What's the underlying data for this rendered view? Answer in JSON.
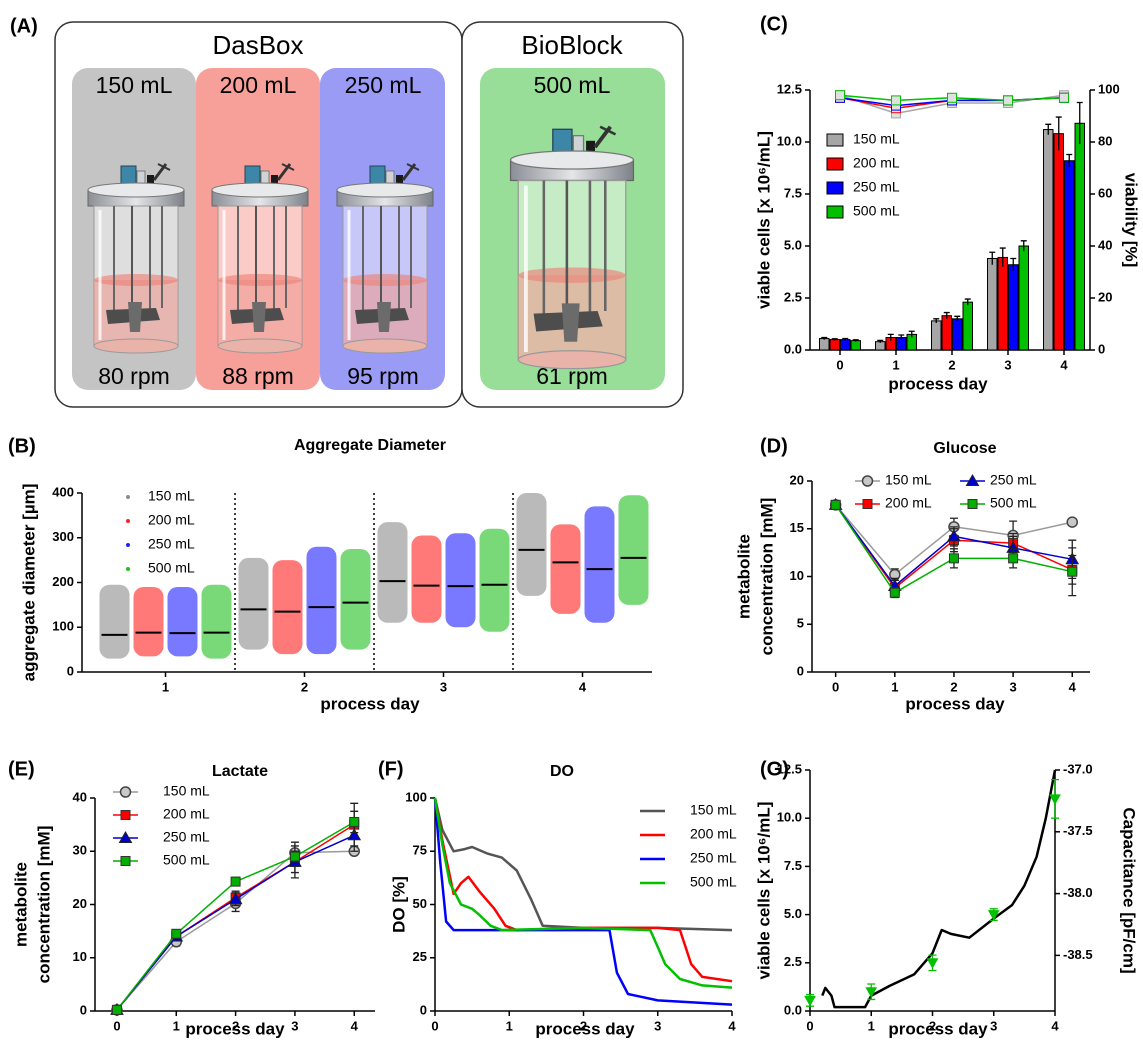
{
  "diagram": {
    "label": "(A)",
    "groups": [
      {
        "title": "DasBox",
        "vessels": [
          {
            "volume": "150 mL",
            "speed": "80 rpm"
          },
          {
            "volume": "200 mL",
            "speed": "88 rpm"
          },
          {
            "volume": "250 mL",
            "speed": "95 rpm"
          }
        ]
      },
      {
        "title": "BioBlock",
        "vessels": [
          {
            "volume": "500 mL",
            "speed": "61 rpm"
          }
        ]
      }
    ]
  },
  "chart_data": [
    {
      "type": "strip",
      "label": "(B)",
      "title": "Aggregate Diameter",
      "xlabel": "process day",
      "ylabel": [
        "aggregate diameter [µm]"
      ],
      "categories": [
        "1",
        "2",
        "3",
        "4"
      ],
      "ylim": [
        0,
        400
      ],
      "yticks": [
        0,
        100,
        200,
        300,
        400
      ],
      "series": [
        {
          "name": "150 mL",
          "color": "#8c8c8c",
          "values": [
            83,
            140,
            203,
            273
          ],
          "low": [
            30,
            50,
            110,
            170
          ],
          "high": [
            195,
            255,
            335,
            400
          ]
        },
        {
          "name": "200 mL",
          "color": "#ff2020",
          "values": [
            88,
            135,
            193,
            245
          ],
          "low": [
            35,
            40,
            110,
            130
          ],
          "high": [
            190,
            250,
            305,
            330
          ]
        },
        {
          "name": "250 mL",
          "color": "#2020ff",
          "values": [
            87,
            145,
            192,
            230
          ],
          "low": [
            35,
            40,
            100,
            110
          ],
          "high": [
            190,
            280,
            310,
            370
          ]
        },
        {
          "name": "500 mL",
          "color": "#20c020",
          "values": [
            88,
            155,
            195,
            255
          ],
          "low": [
            30,
            50,
            90,
            150
          ],
          "high": [
            195,
            275,
            320,
            395
          ]
        }
      ]
    },
    {
      "type": "bar",
      "label": "(C)",
      "xlabel": "process day",
      "ylabel": [
        "viable cells [x 10⁶/mL]"
      ],
      "y2label": "viability [%]",
      "categories": [
        "0",
        "1",
        "2",
        "3",
        "4"
      ],
      "ylim": [
        0,
        12.5
      ],
      "yticks": [
        {
          "value": 0,
          "label": "0.0"
        },
        2.5,
        {
          "value": 5,
          "label": "5.0"
        },
        7.5,
        {
          "value": 10,
          "label": "10.0"
        },
        12.5
      ],
      "y2lim": [
        0,
        100
      ],
      "y2ticks": [
        0,
        20,
        40,
        60,
        80,
        100
      ],
      "series": [
        {
          "name": "150 mL",
          "type": "bar",
          "color": "#a6a6a6",
          "values": [
            0.55,
            0.4,
            1.4,
            4.4,
            10.6
          ],
          "errors": [
            0.05,
            0.06,
            0.1,
            0.3,
            0.25
          ]
        },
        {
          "name": "200 mL",
          "type": "bar",
          "color": "#ff0000",
          "values": [
            0.5,
            0.6,
            1.65,
            4.45,
            10.4
          ],
          "errors": [
            0.04,
            0.15,
            0.15,
            0.45,
            0.8
          ]
        },
        {
          "name": "250 mL",
          "type": "bar",
          "color": "#0000ff",
          "values": [
            0.5,
            0.6,
            1.5,
            4.1,
            9.1
          ],
          "errors": [
            0.05,
            0.12,
            0.12,
            0.3,
            0.3
          ]
        },
        {
          "name": "500 mL",
          "type": "bar",
          "color": "#00c000",
          "values": [
            0.45,
            0.75,
            2.3,
            5.0,
            10.9
          ],
          "errors": [
            0.04,
            0.15,
            0.15,
            0.25,
            1.0
          ]
        },
        {
          "type": "line",
          "axis": "y2",
          "marker": "square",
          "color": "#a6a6a6",
          "values": [
            98,
            91,
            95,
            95,
            98
          ]
        },
        {
          "type": "line",
          "axis": "y2",
          "marker": "square",
          "color": "#ff0000",
          "values": [
            97,
            93,
            96,
            96,
            97
          ]
        },
        {
          "type": "line",
          "axis": "y2",
          "marker": "square",
          "color": "#0000ff",
          "values": [
            97,
            94,
            96,
            96,
            97
          ]
        },
        {
          "type": "line",
          "axis": "y2",
          "marker": "square",
          "color": "#00c000",
          "values": [
            98,
            96,
            97,
            96,
            97
          ]
        }
      ]
    },
    {
      "type": "line",
      "label": "(D)",
      "title": "Glucose",
      "xlabel": "process day",
      "ylabel": [
        "metabolite",
        "concentration [mM]"
      ],
      "x": [
        0,
        1,
        2,
        3,
        4
      ],
      "xlim": [
        -0.4,
        4.3
      ],
      "xticks": [
        0,
        1,
        2,
        3,
        4
      ],
      "ylim": [
        0,
        20
      ],
      "yticks": [
        0,
        5,
        10,
        15,
        20
      ],
      "series": [
        {
          "name": "150 mL",
          "marker": "circle",
          "color": "#9a9a9a",
          "values": [
            17.5,
            10.2,
            15.2,
            14.3,
            15.7
          ],
          "errors": [
            0.3,
            0.6,
            0.9,
            1.5,
            0.3
          ]
        },
        {
          "name": "200 mL",
          "marker": "square",
          "color": "#ff0000",
          "values": [
            17.5,
            8.8,
            13.8,
            13.5,
            10.7
          ],
          "errors": [
            0.3,
            0.8,
            1.2,
            1.0,
            1.5
          ]
        },
        {
          "name": "250 mL",
          "marker": "triangle",
          "color": "#0000cc",
          "values": [
            17.5,
            9.0,
            14.2,
            13.0,
            11.8
          ],
          "errors": [
            0.3,
            0.8,
            1.0,
            1.2,
            2.0
          ]
        },
        {
          "name": "500 mL",
          "marker": "square",
          "color": "#00b000",
          "values": [
            17.5,
            8.3,
            11.9,
            11.9,
            10.5
          ],
          "errors": [
            0.3,
            0.5,
            1.0,
            1.0,
            2.5
          ]
        }
      ]
    },
    {
      "type": "line",
      "label": "(E)",
      "title": "Lactate",
      "xlabel": "process day",
      "ylabel": [
        "metabolite",
        "concentration [mM]"
      ],
      "x": [
        0,
        1,
        2,
        3,
        4
      ],
      "xlim": [
        -0.37,
        4.35
      ],
      "xticks": [
        0,
        1,
        2,
        3,
        4
      ],
      "ylim": [
        0,
        40
      ],
      "yticks": [
        0,
        10,
        20,
        30,
        40
      ],
      "series": [
        {
          "name": "150 mL",
          "marker": "circle",
          "color": "#9a9a9a",
          "values": [
            0.2,
            13,
            20.2,
            29.7,
            30
          ],
          "errors": [
            0.2,
            0.8,
            1.5,
            2.0,
            0.5
          ]
        },
        {
          "name": "200 mL",
          "marker": "square",
          "color": "#ff0000",
          "values": [
            0.2,
            14,
            21.3,
            28,
            35
          ],
          "errors": [
            0.2,
            0.8,
            1.2,
            3.0,
            4.0
          ]
        },
        {
          "name": "250 mL",
          "marker": "triangle",
          "color": "#0000cc",
          "values": [
            0.2,
            14,
            21,
            28,
            33
          ],
          "errors": [
            0.2,
            0.8,
            1.2,
            2.0,
            3.0
          ]
        },
        {
          "name": "500 mL",
          "marker": "square",
          "color": "#00b000",
          "values": [
            0.2,
            14.5,
            24.3,
            29,
            35.5
          ],
          "errors": [
            0.2,
            0.6,
            0.8,
            1.0,
            2.0
          ]
        }
      ]
    },
    {
      "type": "line",
      "label": "(F)",
      "title": "DO",
      "xlabel": "process day",
      "ylabel": [
        "DO [%]"
      ],
      "xlim": [
        0,
        4
      ],
      "xticks": [
        0,
        1,
        2,
        3,
        4
      ],
      "ylim": [
        0,
        100
      ],
      "yticks": [
        0,
        25,
        50,
        75,
        100
      ],
      "series": [
        {
          "name": "150 mL",
          "color": "#555555",
          "x": [
            0,
            0.1,
            0.25,
            0.4,
            0.5,
            0.7,
            0.9,
            1.1,
            1.3,
            1.45,
            2,
            3,
            4
          ],
          "values": [
            100,
            85,
            75,
            76,
            77,
            74,
            72,
            66,
            52,
            40,
            39,
            39,
            38
          ]
        },
        {
          "name": "200 mL",
          "color": "#ff0000",
          "x": [
            0,
            0.1,
            0.25,
            0.35,
            0.45,
            0.6,
            0.8,
            0.95,
            1.1,
            2,
            3,
            3.3,
            3.45,
            3.6,
            4
          ],
          "values": [
            100,
            80,
            55,
            60,
            63,
            56,
            48,
            40,
            38,
            39,
            39,
            38,
            22,
            16,
            14
          ]
        },
        {
          "name": "250 mL",
          "color": "#0000ff",
          "x": [
            0,
            0.07,
            0.15,
            0.25,
            1,
            2,
            2.35,
            2.45,
            2.6,
            3,
            4
          ],
          "values": [
            100,
            70,
            42,
            38,
            38,
            38,
            38,
            18,
            8,
            5,
            3
          ]
        },
        {
          "name": "500 mL",
          "color": "#00c000",
          "x": [
            0,
            0.1,
            0.2,
            0.35,
            0.5,
            0.6,
            0.75,
            0.9,
            2,
            2.9,
            3.0,
            3.1,
            3.3,
            3.6,
            4
          ],
          "values": [
            100,
            78,
            60,
            50,
            48,
            45,
            40,
            38,
            39,
            38,
            30,
            22,
            15,
            12,
            11
          ]
        }
      ]
    },
    {
      "type": "line",
      "label": "(G)",
      "xlabel": "process day",
      "ylabel": [
        "viable cells [x 10⁶/mL]"
      ],
      "y2label": "Capacitance [pF/cm]",
      "xlim": [
        0,
        4
      ],
      "xticks": [
        0,
        1,
        2,
        3,
        4
      ],
      "ylim": [
        0,
        12.5
      ],
      "yticks": [
        {
          "value": 0,
          "label": "0.0"
        },
        2.5,
        {
          "value": 5,
          "label": "5.0"
        },
        7.5,
        {
          "value": 10,
          "label": "10.0"
        },
        12.5
      ],
      "y2lim": [
        -38.95,
        -37.0
      ],
      "y2ticks": [
        -38.5,
        {
          "value": -38,
          "label": "-38.0"
        },
        -37.5,
        {
          "value": -37,
          "label": "-37.0"
        }
      ],
      "series": [
        {
          "color": "#000000",
          "x": [
            0.2,
            0.25,
            0.35,
            0.4,
            0.9,
            1.0,
            1.3,
            1.7,
            2.0,
            2.15,
            2.3,
            2.6,
            3.0,
            3.3,
            3.5,
            3.7,
            3.85,
            4.0
          ],
          "values": [
            0.8,
            1.2,
            0.8,
            0.2,
            0.2,
            0.8,
            1.3,
            1.9,
            3.0,
            4.2,
            4.0,
            3.8,
            4.8,
            5.5,
            6.5,
            8,
            10,
            12.5
          ]
        },
        {
          "color": "#00c000",
          "marker": "triangle-down",
          "linestyle": "none",
          "x": [
            0,
            1,
            2,
            3,
            4
          ],
          "values": [
            0.55,
            1.0,
            2.5,
            5.0,
            11.0
          ],
          "errors": [
            0.3,
            0.4,
            0.4,
            0.3,
            1.0
          ]
        }
      ]
    }
  ]
}
